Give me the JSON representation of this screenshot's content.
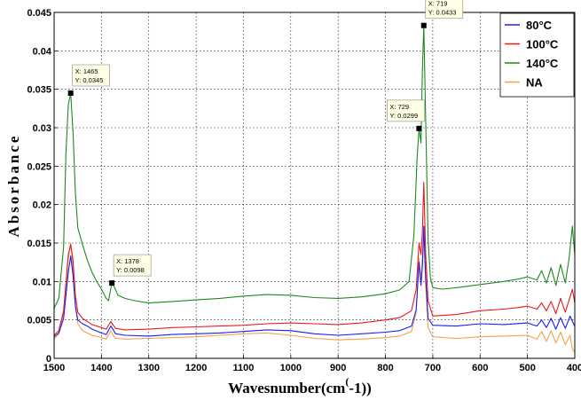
{
  "chart_data": {
    "type": "line",
    "title": "",
    "xlabel": "Wavesnumber(cm^(-1))",
    "xlabel_main": "Wavesnumber(cm",
    "xlabel_sup": "(",
    "xlabel_tail": "-1))",
    "ylabel": "Absorbance",
    "xlim": [
      1500,
      400
    ],
    "ylim": [
      0,
      0.045
    ],
    "x_reversed": true,
    "grid": true,
    "legend_position": "top-right",
    "x_ticks": [
      "1500",
      "1400",
      "1300",
      "1200",
      "1100",
      "1000",
      "900",
      "800",
      "700",
      "600",
      "500",
      "400"
    ],
    "y_ticks": [
      "0",
      "0.005",
      "0.01",
      "0.015",
      "0.02",
      "0.025",
      "0.03",
      "0.035",
      "0.04",
      "0.045"
    ],
    "series": [
      {
        "name": "80°C",
        "color": "#1a1aff",
        "points": [
          [
            1500,
            0.0028
          ],
          [
            1490,
            0.0033
          ],
          [
            1480,
            0.0052
          ],
          [
            1470,
            0.0112
          ],
          [
            1465,
            0.0133
          ],
          [
            1460,
            0.0108
          ],
          [
            1455,
            0.0068
          ],
          [
            1450,
            0.005
          ],
          [
            1440,
            0.0045
          ],
          [
            1430,
            0.0042
          ],
          [
            1420,
            0.0038
          ],
          [
            1400,
            0.0033
          ],
          [
            1390,
            0.0031
          ],
          [
            1380,
            0.0042
          ],
          [
            1375,
            0.0037
          ],
          [
            1370,
            0.0032
          ],
          [
            1350,
            0.003
          ],
          [
            1300,
            0.0029
          ],
          [
            1250,
            0.0031
          ],
          [
            1200,
            0.0032
          ],
          [
            1150,
            0.0033
          ],
          [
            1100,
            0.0035
          ],
          [
            1050,
            0.0037
          ],
          [
            1000,
            0.0036
          ],
          [
            950,
            0.0032
          ],
          [
            900,
            0.003
          ],
          [
            850,
            0.0032
          ],
          [
            800,
            0.0034
          ],
          [
            770,
            0.0036
          ],
          [
            745,
            0.0042
          ],
          [
            735,
            0.0063
          ],
          [
            729,
            0.0125
          ],
          [
            725,
            0.0095
          ],
          [
            722,
            0.012
          ],
          [
            719,
            0.0172
          ],
          [
            715,
            0.0105
          ],
          [
            710,
            0.0052
          ],
          [
            700,
            0.0043
          ],
          [
            650,
            0.0042
          ],
          [
            600,
            0.0045
          ],
          [
            550,
            0.0044
          ],
          [
            500,
            0.0046
          ],
          [
            480,
            0.0042
          ],
          [
            470,
            0.005
          ],
          [
            460,
            0.004
          ],
          [
            450,
            0.0052
          ],
          [
            440,
            0.0038
          ],
          [
            430,
            0.0053
          ],
          [
            420,
            0.0039
          ],
          [
            410,
            0.0055
          ],
          [
            405,
            0.0048
          ],
          [
            400,
            0.0042
          ]
        ]
      },
      {
        "name": "100°C",
        "color": "#e81a1a",
        "points": [
          [
            1500,
            0.003
          ],
          [
            1490,
            0.0036
          ],
          [
            1480,
            0.0062
          ],
          [
            1470,
            0.0135
          ],
          [
            1465,
            0.0148
          ],
          [
            1460,
            0.0128
          ],
          [
            1455,
            0.0082
          ],
          [
            1450,
            0.006
          ],
          [
            1440,
            0.0052
          ],
          [
            1430,
            0.0048
          ],
          [
            1420,
            0.0044
          ],
          [
            1400,
            0.004
          ],
          [
            1390,
            0.0038
          ],
          [
            1380,
            0.0048
          ],
          [
            1375,
            0.0043
          ],
          [
            1370,
            0.0039
          ],
          [
            1350,
            0.0037
          ],
          [
            1300,
            0.0038
          ],
          [
            1250,
            0.004
          ],
          [
            1200,
            0.0041
          ],
          [
            1150,
            0.0042
          ],
          [
            1100,
            0.0043
          ],
          [
            1050,
            0.0045
          ],
          [
            1000,
            0.0046
          ],
          [
            950,
            0.0045
          ],
          [
            900,
            0.0044
          ],
          [
            850,
            0.0046
          ],
          [
            800,
            0.005
          ],
          [
            770,
            0.0053
          ],
          [
            745,
            0.0062
          ],
          [
            735,
            0.009
          ],
          [
            729,
            0.015
          ],
          [
            725,
            0.0135
          ],
          [
            722,
            0.0165
          ],
          [
            719,
            0.0229
          ],
          [
            715,
            0.0135
          ],
          [
            710,
            0.0075
          ],
          [
            700,
            0.0055
          ],
          [
            650,
            0.0057
          ],
          [
            600,
            0.0062
          ],
          [
            550,
            0.0064
          ],
          [
            520,
            0.0066
          ],
          [
            500,
            0.0068
          ],
          [
            480,
            0.0064
          ],
          [
            470,
            0.0072
          ],
          [
            460,
            0.0062
          ],
          [
            450,
            0.0074
          ],
          [
            440,
            0.0058
          ],
          [
            430,
            0.0078
          ],
          [
            420,
            0.006
          ],
          [
            410,
            0.008
          ],
          [
            405,
            0.009
          ],
          [
            400,
            0.0072
          ]
        ]
      },
      {
        "name": "140°C",
        "color": "#1e8a1e",
        "points": [
          [
            1500,
            0.0065
          ],
          [
            1490,
            0.0078
          ],
          [
            1480,
            0.0145
          ],
          [
            1475,
            0.0265
          ],
          [
            1470,
            0.033
          ],
          [
            1465,
            0.0345
          ],
          [
            1460,
            0.0295
          ],
          [
            1455,
            0.0215
          ],
          [
            1450,
            0.017
          ],
          [
            1440,
            0.0148
          ],
          [
            1430,
            0.0128
          ],
          [
            1420,
            0.0112
          ],
          [
            1410,
            0.01
          ],
          [
            1400,
            0.009
          ],
          [
            1390,
            0.0078
          ],
          [
            1385,
            0.0075
          ],
          [
            1378,
            0.0098
          ],
          [
            1372,
            0.0092
          ],
          [
            1365,
            0.0082
          ],
          [
            1350,
            0.0078
          ],
          [
            1330,
            0.0075
          ],
          [
            1300,
            0.0072
          ],
          [
            1250,
            0.0074
          ],
          [
            1200,
            0.0076
          ],
          [
            1150,
            0.0078
          ],
          [
            1100,
            0.0081
          ],
          [
            1050,
            0.0083
          ],
          [
            1000,
            0.0082
          ],
          [
            950,
            0.0079
          ],
          [
            900,
            0.0078
          ],
          [
            850,
            0.008
          ],
          [
            800,
            0.0084
          ],
          [
            770,
            0.0089
          ],
          [
            750,
            0.01
          ],
          [
            740,
            0.016
          ],
          [
            733,
            0.0262
          ],
          [
            729,
            0.0299
          ],
          [
            725,
            0.028
          ],
          [
            722,
            0.0375
          ],
          [
            719,
            0.0433
          ],
          [
            715,
            0.031
          ],
          [
            710,
            0.0155
          ],
          [
            705,
            0.0105
          ],
          [
            700,
            0.0092
          ],
          [
            680,
            0.009
          ],
          [
            650,
            0.0092
          ],
          [
            600,
            0.0096
          ],
          [
            550,
            0.01
          ],
          [
            520,
            0.0103
          ],
          [
            500,
            0.0106
          ],
          [
            480,
            0.0102
          ],
          [
            470,
            0.0114
          ],
          [
            460,
            0.0098
          ],
          [
            450,
            0.0118
          ],
          [
            440,
            0.0095
          ],
          [
            430,
            0.0122
          ],
          [
            420,
            0.0098
          ],
          [
            412,
            0.013
          ],
          [
            405,
            0.0172
          ],
          [
            400,
            0.0135
          ]
        ]
      },
      {
        "name": "NA",
        "color": "#f5a04a",
        "points": [
          [
            1500,
            0.0025
          ],
          [
            1490,
            0.0032
          ],
          [
            1480,
            0.0058
          ],
          [
            1470,
            0.013
          ],
          [
            1465,
            0.015
          ],
          [
            1460,
            0.0118
          ],
          [
            1455,
            0.0068
          ],
          [
            1450,
            0.0045
          ],
          [
            1440,
            0.0036
          ],
          [
            1430,
            0.0033
          ],
          [
            1420,
            0.003
          ],
          [
            1400,
            0.0027
          ],
          [
            1390,
            0.0025
          ],
          [
            1380,
            0.0036
          ],
          [
            1375,
            0.003
          ],
          [
            1370,
            0.0026
          ],
          [
            1350,
            0.0025
          ],
          [
            1300,
            0.0026
          ],
          [
            1250,
            0.0027
          ],
          [
            1200,
            0.0028
          ],
          [
            1150,
            0.003
          ],
          [
            1100,
            0.0032
          ],
          [
            1050,
            0.0033
          ],
          [
            1000,
            0.003
          ],
          [
            950,
            0.0026
          ],
          [
            900,
            0.0024
          ],
          [
            850,
            0.0025
          ],
          [
            800,
            0.0027
          ],
          [
            770,
            0.0029
          ],
          [
            745,
            0.0035
          ],
          [
            735,
            0.006
          ],
          [
            729,
            0.013
          ],
          [
            725,
            0.0102
          ],
          [
            722,
            0.013
          ],
          [
            719,
            0.016
          ],
          [
            715,
            0.0095
          ],
          [
            710,
            0.004
          ],
          [
            700,
            0.0028
          ],
          [
            650,
            0.0026
          ],
          [
            600,
            0.0028
          ],
          [
            550,
            0.0029
          ],
          [
            500,
            0.003
          ],
          [
            480,
            0.0025
          ],
          [
            470,
            0.0035
          ],
          [
            460,
            0.0022
          ],
          [
            450,
            0.0036
          ],
          [
            440,
            0.002
          ],
          [
            430,
            0.0034
          ],
          [
            420,
            0.0018
          ],
          [
            410,
            0.003
          ],
          [
            405,
            0.0012
          ],
          [
            400,
            0.0008
          ]
        ]
      }
    ],
    "annotations": [
      {
        "x": 1465,
        "y": 0.0345,
        "line1": "X: 1465",
        "line2": "Y: 0.0345"
      },
      {
        "x": 1378,
        "y": 0.0098,
        "line1": "X: 1378",
        "line2": "Y: 0.0098"
      },
      {
        "x": 729,
        "y": 0.0299,
        "line1": "X: 729",
        "line2": "Y: 0.0299"
      },
      {
        "x": 719,
        "y": 0.0433,
        "line1": "X: 719",
        "line2": "Y: 0.0433"
      }
    ]
  }
}
